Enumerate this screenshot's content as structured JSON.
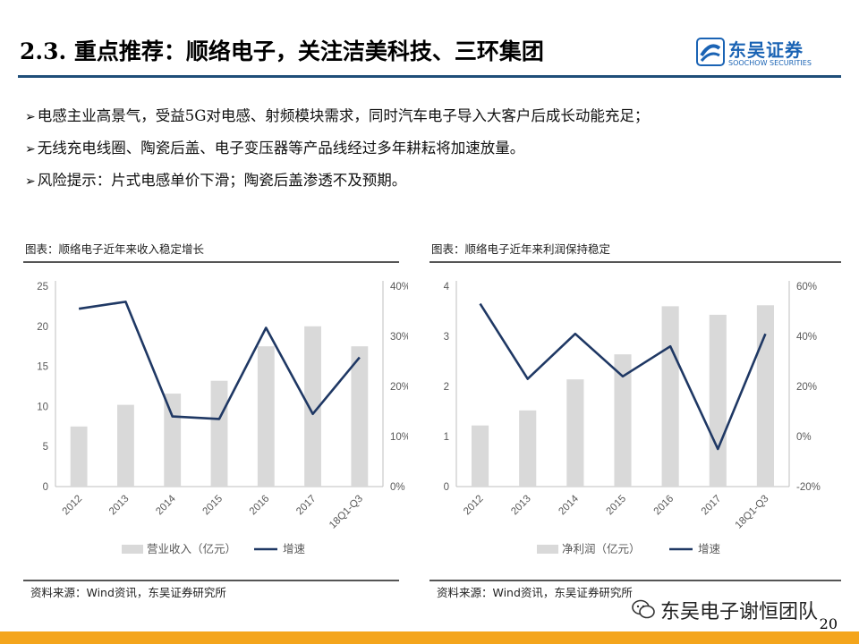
{
  "header": {
    "title": "2.3. 重点推荐：顺络电子，关注洁美科技、三环集团",
    "logo_cn": "东吴证券",
    "logo_en": "SOOCHOW SECURITIES"
  },
  "bullets": [
    "电感主业高景气，受益5G对电感、射频模块需求，同时汽车电子导入大客户后成长动能充足；",
    "无线充电线圈、陶瓷后盖、电子变压器等产品线经过多年耕耘将加速放量。",
    "风险提示：片式电感单价下滑；陶瓷后盖渗透不及预期。"
  ],
  "bullet_marker": "➢",
  "chart_data": [
    {
      "type": "bar",
      "caption": "图表：顺络电子近年来收入稳定增长",
      "source": "资料来源：Wind资讯，东吴证券研究所",
      "categories": [
        "2012",
        "2013",
        "2014",
        "2015",
        "2016",
        "2017",
        "18Q1-Q3"
      ],
      "series": [
        {
          "name": "营业收入（亿元）",
          "kind": "bar",
          "axis": "left",
          "color": "#d9d9d9",
          "values": [
            7.5,
            10.2,
            11.6,
            13.2,
            17.5,
            20.0,
            17.5
          ]
        },
        {
          "name": "增速",
          "kind": "line",
          "axis": "right",
          "color": "#1f3864",
          "values": [
            0.355,
            0.369,
            0.14,
            0.135,
            0.317,
            0.145,
            0.258
          ]
        }
      ],
      "y_left": {
        "min": 0,
        "max": 25,
        "ticks": [
          "0",
          "5",
          "10",
          "15",
          "20",
          "25"
        ]
      },
      "y_right": {
        "min": 0,
        "max": 0.4,
        "ticks": [
          "0%",
          "10%",
          "20%",
          "30%",
          "40%"
        ]
      },
      "legend_position": "bottom"
    },
    {
      "type": "bar",
      "caption": "图表：顺络电子近年来利润保持稳定",
      "source": "资料来源：Wind资讯，东吴证券研究所",
      "categories": [
        "2012",
        "2013",
        "2014",
        "2015",
        "2016",
        "2017",
        "18Q1-Q3"
      ],
      "series": [
        {
          "name": "净利润（亿元）",
          "kind": "bar",
          "axis": "left",
          "color": "#d9d9d9",
          "values": [
            1.22,
            1.52,
            2.14,
            2.64,
            3.6,
            3.43,
            3.62
          ]
        },
        {
          "name": "增速",
          "kind": "line",
          "axis": "right",
          "color": "#1f3864",
          "values": [
            0.53,
            0.23,
            0.41,
            0.24,
            0.36,
            -0.05,
            0.41
          ]
        }
      ],
      "y_left": {
        "min": 0,
        "max": 4,
        "ticks": [
          "0",
          "1",
          "2",
          "3",
          "4"
        ]
      },
      "y_right": {
        "min": -0.2,
        "max": 0.6,
        "ticks": [
          "-20%",
          "0%",
          "20%",
          "40%",
          "60%"
        ]
      },
      "legend_position": "bottom"
    }
  ],
  "watermark": "东吴电子谢恒团队",
  "page_number": "20"
}
